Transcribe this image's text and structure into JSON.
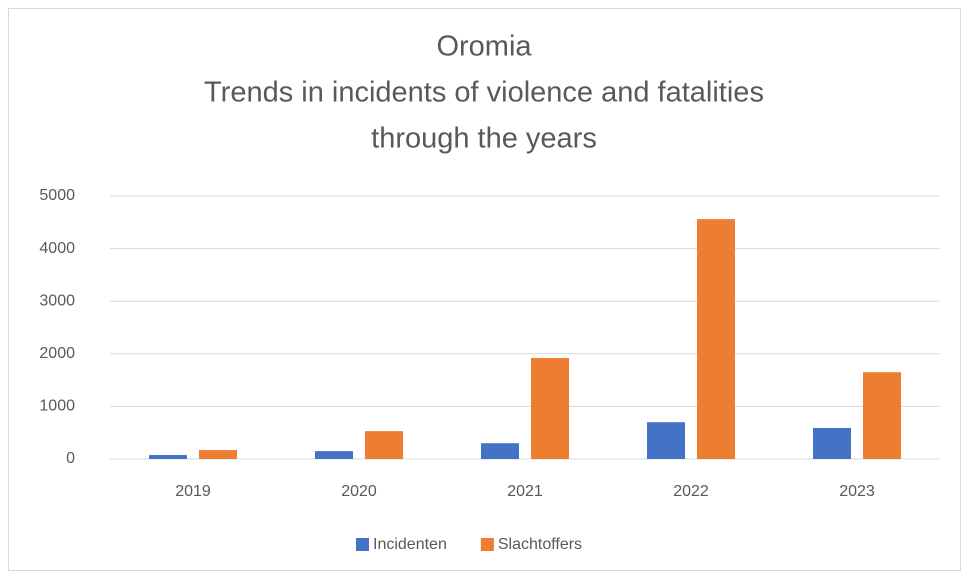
{
  "chart_data": {
    "type": "bar",
    "title": [
      "Oromia",
      "Trends in incidents of violence and fatalities",
      "through the years"
    ],
    "categories": [
      "2019",
      "2020",
      "2021",
      "2022",
      "2023"
    ],
    "series": [
      {
        "name": "Incidenten",
        "color": "#4472c4",
        "values": [
          75,
          150,
          300,
          700,
          590
        ]
      },
      {
        "name": "Slachtoffers",
        "color": "#ed7d31",
        "values": [
          170,
          530,
          1920,
          4560,
          1650
        ]
      }
    ],
    "ylim": [
      0,
      5000
    ],
    "yticks": [
      0,
      1000,
      2000,
      3000,
      4000,
      5000
    ],
    "grid": true,
    "legend": "bottom"
  }
}
